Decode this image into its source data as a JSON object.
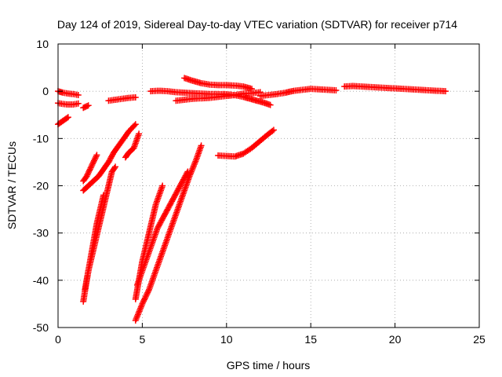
{
  "chart_data": {
    "type": "scatter",
    "title": "Day 124 of 2019, Sidereal Day-to-day VTEC variation (SDTVAR) for receiver p714",
    "xlabel": "GPS time / hours",
    "ylabel": "SDTVAR / TECUs",
    "xlim": [
      0,
      25
    ],
    "ylim": [
      -50,
      10
    ],
    "xticks": [
      0,
      5,
      10,
      15,
      20,
      25
    ],
    "yticks": [
      -50,
      -40,
      -30,
      -20,
      -10,
      0,
      10
    ],
    "grid": true,
    "legend": "none",
    "marker": "plus",
    "color": "#ff0000",
    "series": [
      {
        "x": [
          0.0,
          0.3,
          0.6,
          0.9,
          1.2
        ],
        "y": [
          0.0,
          -0.3,
          -0.5,
          -0.6,
          -0.8
        ]
      },
      {
        "x": [
          0.0,
          0.3,
          0.6,
          0.9,
          1.2
        ],
        "y": [
          -2.5,
          -2.7,
          -2.8,
          -2.8,
          -2.6
        ]
      },
      {
        "x": [
          1.5,
          1.8
        ],
        "y": [
          -3.5,
          -3.0
        ]
      },
      {
        "x": [
          0.0,
          0.2,
          0.4,
          0.6
        ],
        "y": [
          -7.0,
          -6.5,
          -6.0,
          -5.5
        ]
      },
      {
        "x": [
          3.0,
          3.4,
          3.8,
          4.2,
          4.6
        ],
        "y": [
          -2.0,
          -1.8,
          -1.6,
          -1.4,
          -1.3
        ]
      },
      {
        "x": [
          1.5,
          1.8,
          2.1,
          2.4,
          2.7,
          3.0,
          3.3,
          3.6,
          3.9,
          4.2,
          4.6
        ],
        "y": [
          -21.0,
          -20.0,
          -19.0,
          -18.0,
          -16.5,
          -15.0,
          -13.0,
          -11.5,
          -10.0,
          -8.5,
          -7.0
        ]
      },
      {
        "x": [
          1.5,
          1.7,
          1.9,
          2.1,
          2.3
        ],
        "y": [
          -19.0,
          -18.0,
          -16.5,
          -15.0,
          -13.5
        ]
      },
      {
        "x": [
          4.0,
          4.2,
          4.5,
          4.8
        ],
        "y": [
          -14.0,
          -13.0,
          -12.0,
          -9.0
        ]
      },
      {
        "x": [
          1.5,
          1.7,
          1.9,
          2.1,
          2.3,
          2.5,
          2.7
        ],
        "y": [
          -44.5,
          -40.0,
          -36.0,
          -32.0,
          -28.0,
          -25.0,
          -22.0
        ]
      },
      {
        "x": [
          1.6,
          1.8,
          2.0,
          2.2,
          2.4,
          2.6,
          2.8,
          3.0,
          3.2,
          3.4
        ],
        "y": [
          -42.0,
          -38.0,
          -35.0,
          -32.0,
          -29.0,
          -26.0,
          -23.0,
          -20.0,
          -17.0,
          -16.0
        ]
      },
      {
        "x": [
          4.6,
          4.8,
          5.0,
          5.2,
          5.4,
          5.6,
          5.8,
          6.0,
          6.2
        ],
        "y": [
          -44.0,
          -40.0,
          -36.0,
          -33.0,
          -30.0,
          -27.0,
          -24.0,
          -22.0,
          -20.0
        ]
      },
      {
        "x": [
          4.6,
          5.0,
          5.4,
          5.8,
          6.2,
          6.6,
          7.0,
          7.4,
          7.8,
          8.2,
          8.5
        ],
        "y": [
          -48.5,
          -45.0,
          -42.0,
          -38.0,
          -34.0,
          -30.0,
          -26.0,
          -22.0,
          -18.0,
          -14.5,
          -11.5
        ]
      },
      {
        "x": [
          4.7,
          5.0,
          5.3,
          5.6,
          5.9,
          6.2,
          6.5,
          6.8,
          7.1,
          7.4,
          7.7
        ],
        "y": [
          -41.0,
          -38.0,
          -35.0,
          -32.0,
          -29.0,
          -27.0,
          -25.0,
          -23.0,
          -21.0,
          -19.0,
          -17.0
        ]
      },
      {
        "x": [
          5.5,
          6.0,
          6.5,
          7.0,
          7.5,
          8.0,
          8.5,
          9.0,
          9.5,
          10.0
        ],
        "y": [
          0.0,
          0.1,
          0.0,
          -0.2,
          -0.3,
          -0.4,
          -0.5,
          -0.6,
          -0.6,
          -0.7
        ]
      },
      {
        "x": [
          7.5,
          8.0,
          8.5,
          9.0,
          9.5,
          10.0,
          10.5,
          11.0,
          11.5
        ],
        "y": [
          2.8,
          2.2,
          1.7,
          1.4,
          1.3,
          1.3,
          1.2,
          1.0,
          0.5
        ]
      },
      {
        "x": [
          7.0,
          7.5,
          8.0,
          8.5,
          9.0,
          9.5,
          10.0,
          10.5,
          11.0,
          11.5,
          12.0
        ],
        "y": [
          -2.0,
          -1.8,
          -1.6,
          -1.5,
          -1.4,
          -1.2,
          -1.0,
          -0.8,
          -0.5,
          -0.4,
          -0.2
        ]
      },
      {
        "x": [
          9.8,
          10.2,
          10.6,
          11.0,
          11.4,
          11.8,
          12.2,
          12.6
        ],
        "y": [
          -0.6,
          -0.7,
          -0.9,
          -1.2,
          -1.6,
          -2.0,
          -2.4,
          -2.9
        ]
      },
      {
        "x": [
          9.5,
          10.5,
          11.0,
          11.5,
          12.0,
          12.5,
          12.8
        ],
        "y": [
          -13.6,
          -13.8,
          -13.2,
          -12.0,
          -10.5,
          -9.0,
          -8.2
        ]
      },
      {
        "x": [
          12.0,
          12.5,
          13.0,
          13.5,
          14.0,
          14.5,
          15.0,
          15.5,
          16.0,
          16.5
        ],
        "y": [
          -1.0,
          -0.8,
          -0.6,
          -0.3,
          0.1,
          0.3,
          0.5,
          0.4,
          0.3,
          0.2
        ]
      },
      {
        "x": [
          17.0,
          17.5,
          18.0,
          18.5,
          19.0,
          19.5,
          20.0,
          20.5,
          21.0,
          21.5,
          22.0,
          22.5,
          23.0
        ],
        "y": [
          1.0,
          1.1,
          1.0,
          0.9,
          0.8,
          0.7,
          0.6,
          0.5,
          0.4,
          0.3,
          0.2,
          0.1,
          0.0
        ]
      }
    ]
  }
}
